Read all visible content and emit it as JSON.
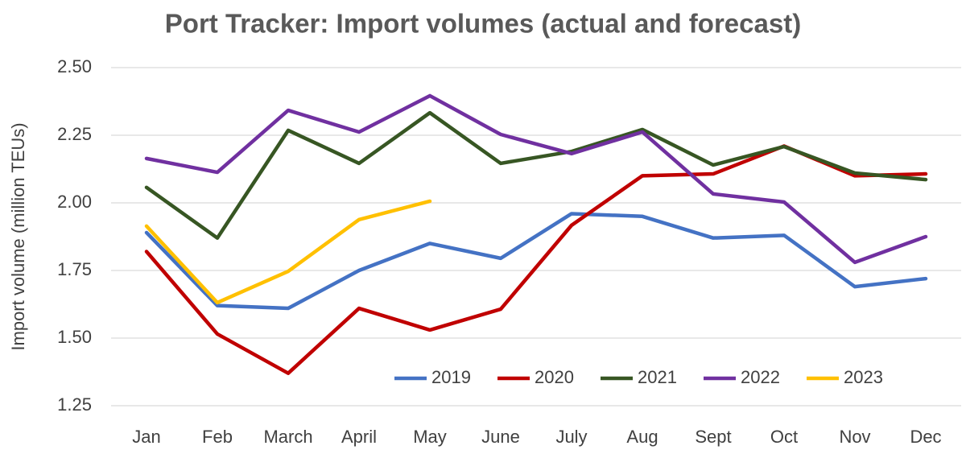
{
  "chart_data": {
    "type": "line",
    "title": "Port Tracker: Import volumes (actual and forecast)",
    "y_label": "Import volume (million TEUs)",
    "categories": [
      "Jan",
      "Feb",
      "March",
      "April",
      "May",
      "June",
      "July",
      "Aug",
      "Sept",
      "Oct",
      "Nov",
      "Dec"
    ],
    "series": [
      {
        "name": "2019",
        "color": "#4472c4",
        "values": [
          1.89,
          1.62,
          1.61,
          1.75,
          1.85,
          1.795,
          1.96,
          1.95,
          1.87,
          1.88,
          1.69,
          1.72
        ]
      },
      {
        "name": "2020",
        "color": "#c00000",
        "values": [
          1.82,
          1.515,
          1.37,
          1.61,
          1.53,
          1.607,
          1.917,
          2.1,
          2.107,
          2.21,
          2.1,
          2.107
        ]
      },
      {
        "name": "2021",
        "color": "#375623",
        "values": [
          2.057,
          1.87,
          2.268,
          2.146,
          2.333,
          2.146,
          2.19,
          2.271,
          2.14,
          2.208,
          2.11,
          2.086
        ]
      },
      {
        "name": "2022",
        "color": "#7030a0",
        "values": [
          2.164,
          2.113,
          2.342,
          2.262,
          2.396,
          2.253,
          2.182,
          2.262,
          2.033,
          2.003,
          1.78,
          1.875
        ]
      },
      {
        "name": "2023",
        "color": "#ffc000",
        "values": [
          1.914,
          1.631,
          1.747,
          1.938,
          2.006,
          null,
          null,
          null,
          null,
          null,
          null,
          null
        ]
      }
    ],
    "ylim": [
      1.25,
      2.5
    ],
    "yticks": [
      {
        "value": 1.25,
        "label": "1.25"
      },
      {
        "value": 1.5,
        "label": "1.50"
      },
      1.75,
      {
        "value": 2,
        "label": "2.00"
      },
      2.25,
      {
        "value": 2.5,
        "label": "2.50"
      }
    ],
    "grid": true,
    "legend": "bottom"
  }
}
